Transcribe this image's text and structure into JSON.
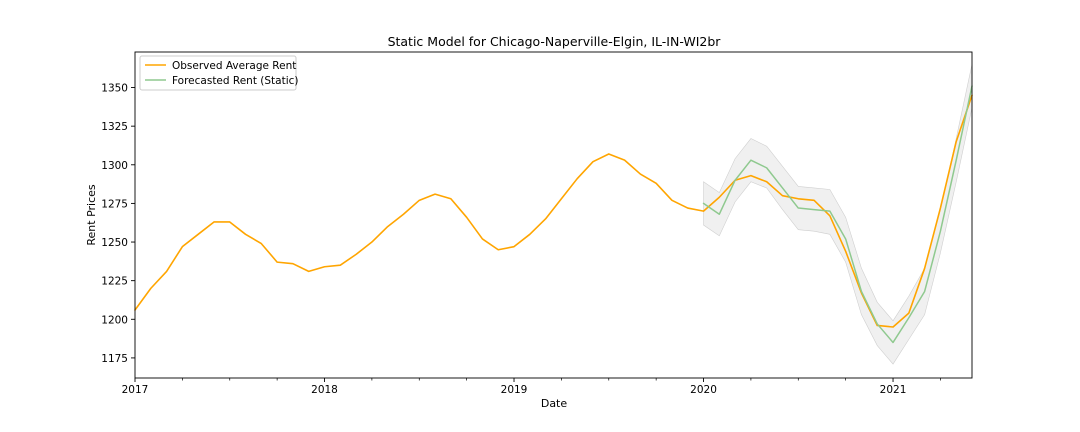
{
  "chart_data": {
    "type": "line",
    "title": "Static Model for Chicago-Naperville-Elgin, IL-IN-WI2br",
    "xlabel": "Date",
    "ylabel": "Rent Prices",
    "xlim": [
      "2017-01",
      "2021-06"
    ],
    "ylim": [
      1162,
      1373
    ],
    "x_ticks": [
      "2017",
      "2018",
      "2019",
      "2020",
      "2021"
    ],
    "y_ticks": [
      1175,
      1200,
      1225,
      1250,
      1275,
      1300,
      1325,
      1350
    ],
    "grid": false,
    "legend": "top-left",
    "series": [
      {
        "name": "Observed Average Rent",
        "color": "#ffa500",
        "x": [
          "2017-01",
          "2017-02",
          "2017-03",
          "2017-04",
          "2017-05",
          "2017-06",
          "2017-07",
          "2017-08",
          "2017-09",
          "2017-10",
          "2017-11",
          "2017-12",
          "2018-01",
          "2018-02",
          "2018-03",
          "2018-04",
          "2018-05",
          "2018-06",
          "2018-07",
          "2018-08",
          "2018-09",
          "2018-10",
          "2018-11",
          "2018-12",
          "2019-01",
          "2019-02",
          "2019-03",
          "2019-04",
          "2019-05",
          "2019-06",
          "2019-07",
          "2019-08",
          "2019-09",
          "2019-10",
          "2019-11",
          "2019-12",
          "2020-01",
          "2020-02",
          "2020-03",
          "2020-04",
          "2020-05",
          "2020-06",
          "2020-07",
          "2020-08",
          "2020-09",
          "2020-10",
          "2020-11",
          "2020-12",
          "2021-01",
          "2021-02",
          "2021-03",
          "2021-04",
          "2021-05",
          "2021-06"
        ],
        "values": [
          1206,
          1220,
          1231,
          1247,
          1255,
          1263,
          1263,
          1255,
          1249,
          1237,
          1236,
          1231,
          1234,
          1235,
          1242,
          1250,
          1260,
          1268,
          1277,
          1281,
          1278,
          1266,
          1252,
          1245,
          1247,
          1255,
          1265,
          1278,
          1291,
          1302,
          1307,
          1303,
          1294,
          1288,
          1277,
          1272,
          1270,
          1279,
          1290,
          1293,
          1289,
          1280,
          1278,
          1277,
          1267,
          1244,
          1217,
          1196,
          1195,
          1204,
          1233,
          1272,
          1315,
          1345
        ]
      },
      {
        "name": "Forecasted Rent (Static)",
        "color": "#8fc98f",
        "x": [
          "2020-01",
          "2020-02",
          "2020-03",
          "2020-04",
          "2020-05",
          "2020-06",
          "2020-07",
          "2020-08",
          "2020-09",
          "2020-10",
          "2020-11",
          "2020-12",
          "2021-01",
          "2021-02",
          "2021-03",
          "2021-04",
          "2021-05",
          "2021-06"
        ],
        "values": [
          1275,
          1268,
          1290,
          1303,
          1298,
          1285,
          1272,
          1271,
          1270,
          1252,
          1218,
          1197,
          1185,
          1201,
          1218,
          1257,
          1303,
          1351
        ],
        "band_lower": [
          1261,
          1254,
          1276,
          1289,
          1285,
          1271,
          1258,
          1257,
          1255,
          1237,
          1203,
          1183,
          1171,
          1187,
          1203,
          1243,
          1289,
          1337
        ],
        "band_upper": [
          1289,
          1282,
          1304,
          1317,
          1312,
          1299,
          1286,
          1285,
          1284,
          1266,
          1233,
          1211,
          1199,
          1215,
          1233,
          1271,
          1317,
          1365
        ],
        "band_color": "#d9d9d9"
      }
    ]
  }
}
